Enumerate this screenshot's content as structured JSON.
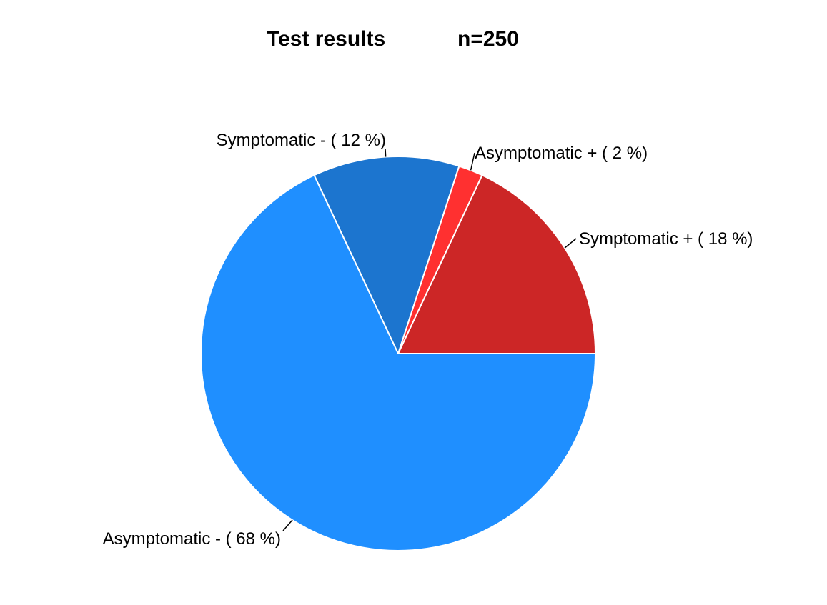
{
  "chart_data": {
    "type": "pie",
    "title": "Test results",
    "subtitle": "n=250",
    "slices": [
      {
        "name": "Symptomatic +",
        "percent": 18,
        "label": "Symptomatic +   ( 18 %)",
        "color": "#cc2626"
      },
      {
        "name": "Asymptomatic +",
        "percent": 2,
        "label": "Asymptomatic +   ( 2 %)",
        "color": "#ff3030"
      },
      {
        "name": "Symptomatic -",
        "percent": 12,
        "label": "Symptomatic -   ( 12 %)",
        "color": "#1c75cf"
      },
      {
        "name": "Asymptomatic -",
        "percent": 68,
        "label": "Asymptomatic -   ( 68 %)",
        "color": "#1f8fff"
      }
    ],
    "start_angle": "3 o'clock",
    "direction": "counterclockwise",
    "slice_border_color": "#ffffff",
    "background": "#ffffff"
  }
}
